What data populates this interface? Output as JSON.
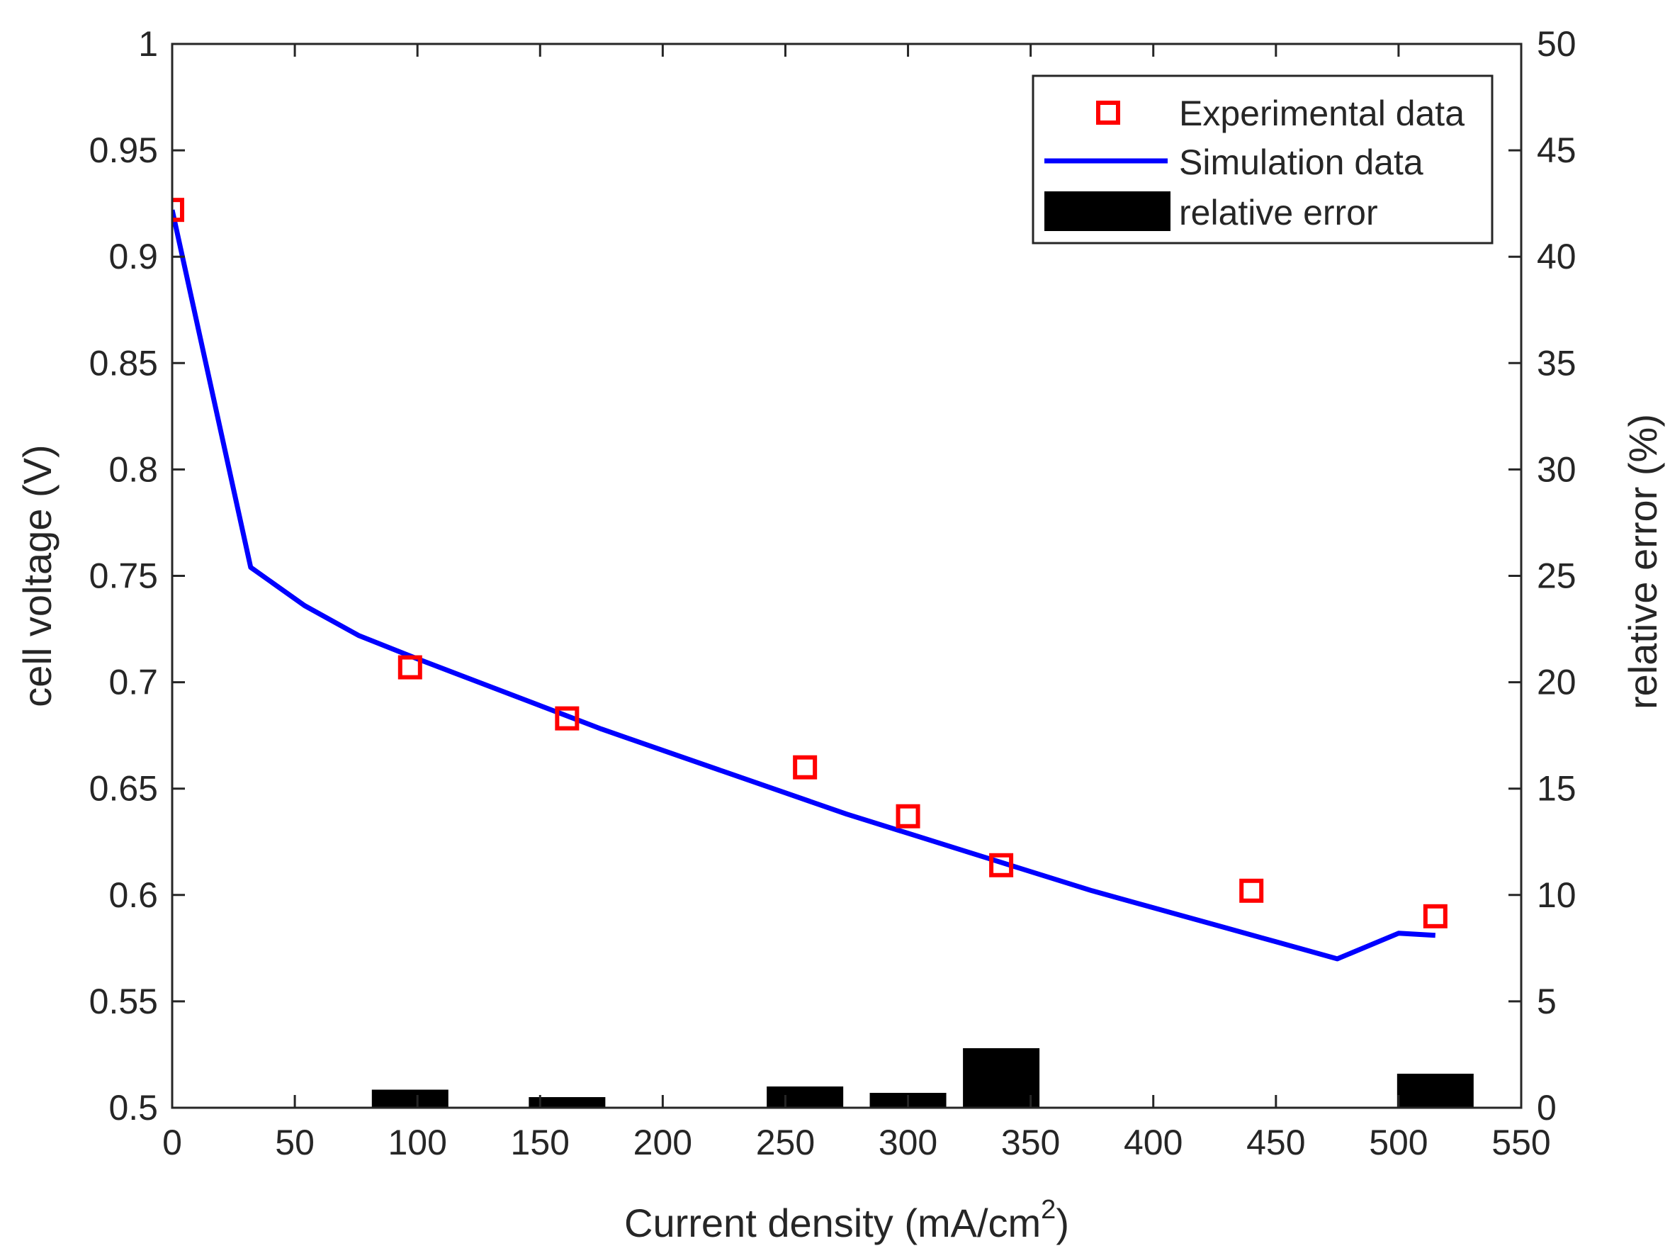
{
  "chart_data": {
    "type": "line",
    "xlabel": "Current density (mA/cm",
    "xlabel_sup": "2",
    "xlabel_end": ")",
    "ylabel_left": "cell voltage (V)",
    "ylabel_right": "relative error (%)",
    "xlim": [
      0,
      550
    ],
    "ylim_left": [
      0.5,
      1
    ],
    "ylim_right": [
      0,
      50
    ],
    "x_ticks": [
      "0",
      "50",
      "100",
      "150",
      "200",
      "250",
      "300",
      "350",
      "400",
      "450",
      "500",
      "550"
    ],
    "y_left_ticks": [
      "0.5",
      "0.55",
      "0.6",
      "0.65",
      "0.7",
      "0.75",
      "0.8",
      "0.85",
      "0.9",
      "0.95",
      "1"
    ],
    "y_right_ticks": [
      "0",
      "5",
      "10",
      "15",
      "20",
      "25",
      "30",
      "35",
      "40",
      "45",
      "50"
    ],
    "grid": false,
    "legend_position": "top-right",
    "series": [
      {
        "name": "Experimental data",
        "kind": "marker",
        "axis": "left",
        "color": "#ff0000",
        "x": [
          0,
          97,
          161,
          258,
          300,
          338,
          440,
          515
        ],
        "y": [
          0.922,
          0.707,
          0.683,
          0.66,
          0.637,
          0.614,
          0.602,
          0.59
        ]
      },
      {
        "name": "Simulation data",
        "kind": "line",
        "axis": "left",
        "color": "#0000ff",
        "x": [
          0,
          32,
          54,
          76,
          100,
          125,
          150,
          175,
          200,
          225,
          250,
          275,
          300,
          325,
          350,
          375,
          400,
          425,
          450,
          475,
          500,
          515
        ],
        "y": [
          0.922,
          0.754,
          0.736,
          0.722,
          0.711,
          0.7,
          0.689,
          0.678,
          0.668,
          0.658,
          0.648,
          0.638,
          0.629,
          0.62,
          0.611,
          0.602,
          0.594,
          0.586,
          0.578,
          0.57,
          0.582,
          0.581
        ]
      },
      {
        "name": "relative error",
        "kind": "bar",
        "axis": "right",
        "color": "#000000",
        "x": [
          0,
          97,
          161,
          258,
          300,
          338,
          440,
          515
        ],
        "y": [
          0.02,
          0.85,
          0.5,
          1.0,
          0.7,
          2.8,
          0.05,
          1.6
        ]
      }
    ]
  }
}
